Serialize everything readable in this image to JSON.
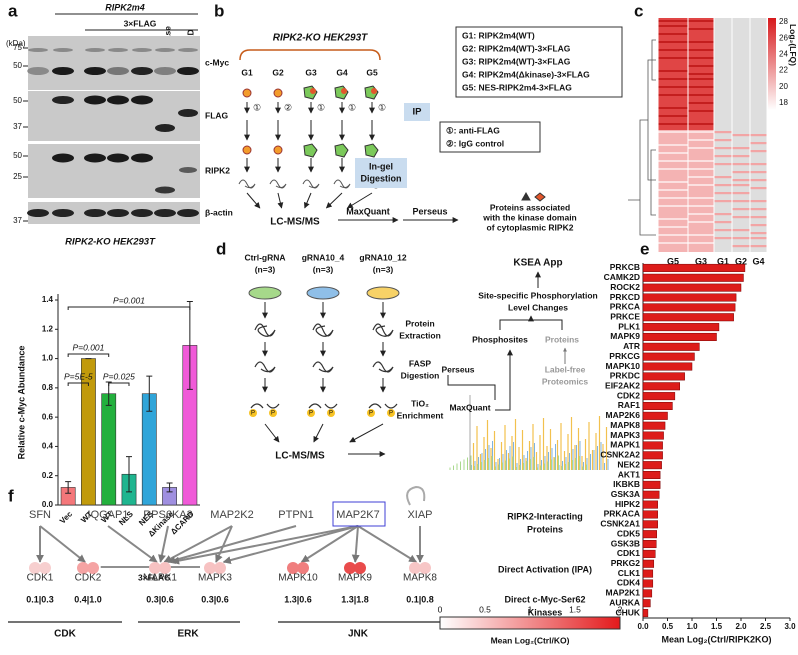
{
  "panel_labels": [
    "a",
    "b",
    "c",
    "d",
    "e",
    "f"
  ],
  "a": {
    "kda": "(kDa)",
    "construct": "RIPK2m4",
    "tag": "3×FLAG",
    "lanes": [
      "Vec",
      "WT",
      "WT",
      "NLS",
      "NES",
      "ΔKinase",
      "ΔCARD"
    ],
    "blots": [
      "c-Myc",
      "FLAG",
      "RIPK2",
      "β-actin"
    ],
    "markers": [
      "75",
      "50",
      "50",
      "37",
      "50",
      "25",
      "37"
    ],
    "cell_line": "RIPK2-KO HEK293T"
  },
  "chart_data": [
    {
      "type": "bar",
      "ylabel": "Relative c-Myc Abundance",
      "categories": [
        "Vec",
        "WT",
        "WT",
        "NLS",
        "NES",
        "ΔKinase",
        "ΔCARD"
      ],
      "values": [
        0.12,
        1.0,
        0.76,
        0.21,
        0.76,
        0.12,
        1.09
      ],
      "errors": [
        0.04,
        0.0,
        0.08,
        0.12,
        0.12,
        0.03,
        0.3
      ],
      "colors": [
        "#f4777a",
        "#c19a0b",
        "#23b03d",
        "#1fb58f",
        "#30a5d9",
        "#9f8fe0",
        "#f05ad8"
      ],
      "ylim": [
        0,
        1.4
      ],
      "yticks": [
        {
          "value": 0,
          "label": "0.0"
        },
        0.2,
        0.4,
        0.6,
        0.8,
        {
          "value": 1,
          "label": "1.0"
        },
        1.2,
        1.4
      ],
      "group_label": "3×FLAG",
      "annotations": [
        "P=5E-5",
        "P=0.001",
        "P=0.025",
        "P=0.001"
      ]
    },
    {
      "type": "barh",
      "categories": [
        "PRKCB",
        "CAMK2D",
        "ROCK2",
        "PRKCD",
        "PRKCA",
        "PRKCE",
        "PLK1",
        "MAPK9",
        "ATR",
        "PRKCG",
        "MAPK10",
        "PRKDC",
        "EIF2AK2",
        "CDK2",
        "RAF1",
        "MAP2K6",
        "MAPK8",
        "MAPK3",
        "MAPK1",
        "CSNK2A2",
        "NEK2",
        "AKT1",
        "IKBKB",
        "GSK3A",
        "HIPK2",
        "PRKACA",
        "CSNK2A1",
        "CDK5",
        "GSK3B",
        "CDK1",
        "PRKG2",
        "CLK1",
        "CDK4",
        "MAP2K1",
        "AURKA",
        "CHUK"
      ],
      "values": [
        2.08,
        2.05,
        2.0,
        1.9,
        1.88,
        1.85,
        1.55,
        1.5,
        1.15,
        1.05,
        1.0,
        0.85,
        0.75,
        0.65,
        0.6,
        0.5,
        0.45,
        0.42,
        0.4,
        0.4,
        0.38,
        0.35,
        0.35,
        0.33,
        0.3,
        0.3,
        0.3,
        0.28,
        0.27,
        0.25,
        0.22,
        0.2,
        0.2,
        0.18,
        0.15,
        0.1
      ],
      "color": "#dd1c1a",
      "xlim": [
        0,
        3
      ],
      "xticks": [
        {
          "value": 0,
          "label": "0.0"
        },
        0.5,
        {
          "value": 1,
          "label": "1.0"
        },
        1.5,
        {
          "value": 2,
          "label": "2.0"
        },
        2.5,
        {
          "value": 3,
          "label": "3.0"
        }
      ],
      "xlabel": "Mean Log₂(Ctrl/RIPK2KO)"
    }
  ],
  "b": {
    "cell_line": "RIPK2-KO HEK293T",
    "groups": [
      "G1",
      "G2",
      "G3",
      "G4",
      "G5"
    ],
    "legend": [
      "G1: RIPK2m4(WT)",
      "G2: RIPK2m4(WT)-3×FLAG",
      "G3: RIPK2m4(WT)-3×FLAG",
      "G4: RIPK2m4(Δkinase)-3×FLAG",
      "G5: NES-RIPK2m4-3×FLAG"
    ],
    "antibodies": [
      "①",
      "②",
      "①",
      "①",
      "①"
    ],
    "ip": "IP",
    "ip_legend": [
      "①: anti-FLAG",
      "②: IgG control"
    ],
    "digestion": [
      "In-gel",
      "Digestion"
    ],
    "ms": "LC-MS/MS",
    "maxquant": "MaxQuant",
    "perseus": "Perseus",
    "result": [
      "Proteins associated",
      "with the kinase domain",
      "of cytoplasmic RIPK2"
    ]
  },
  "c": {
    "columns": [
      "G5",
      "G3",
      "G1",
      "G2",
      "G4"
    ],
    "colorbar_ticks": [
      28,
      26,
      24,
      22,
      20,
      18
    ],
    "colorbar_label": "Log₂(LFQ)"
  },
  "d": {
    "samples": [
      [
        "Ctrl-gRNA",
        "(n=3)"
      ],
      [
        "gRNA10_4",
        "(n=3)"
      ],
      [
        "gRNA10_12",
        "(n=3)"
      ]
    ],
    "steps": [
      [
        "Protein",
        "Extraction"
      ],
      [
        "FASP",
        "Digestion"
      ],
      [
        "TiO₂",
        "Enrichment"
      ]
    ],
    "ms": "LC-MS/MS",
    "maxquant": "MaxQuant",
    "perseus": "Perseus",
    "phosphosites": "Phosphosites",
    "proteins": "Proteins",
    "label_free": [
      "Label-free",
      "Proteomics"
    ],
    "site_specific": [
      "Site-specific Phosphorylation",
      "Level Changes"
    ],
    "ksea": "KSEA App",
    "p": "P"
  },
  "f": {
    "interactors": [
      "SFN",
      "IQGAP1",
      "RPS6KA3",
      "MAP2K2",
      "PTPN1",
      "MAP2K7",
      "XIAP"
    ],
    "kinases": [
      "CDK1",
      "CDK2",
      "MAPK1",
      "MAPK3",
      "MAPK10",
      "MAPK9",
      "MAPK8"
    ],
    "kinase_values": [
      "0.1|0.3",
      "0.4|1.0",
      "0.3|0.6",
      "0.3|0.6",
      "1.3|0.6",
      "1.3|1.8",
      "0.1|0.8"
    ],
    "families": [
      "CDK",
      "ERK",
      "JNK"
    ],
    "legend": [
      [
        "RIPK2-Interacting",
        "Proteins"
      ],
      [
        "Direct Activation (IPA)"
      ],
      [
        "Direct c-Myc-Ser62",
        "Kinases"
      ]
    ],
    "colorbar_ticks": [
      0,
      0.5,
      1,
      1.5,
      2
    ],
    "colorbar_label": "Mean Log₂(Ctrl/KO)"
  }
}
